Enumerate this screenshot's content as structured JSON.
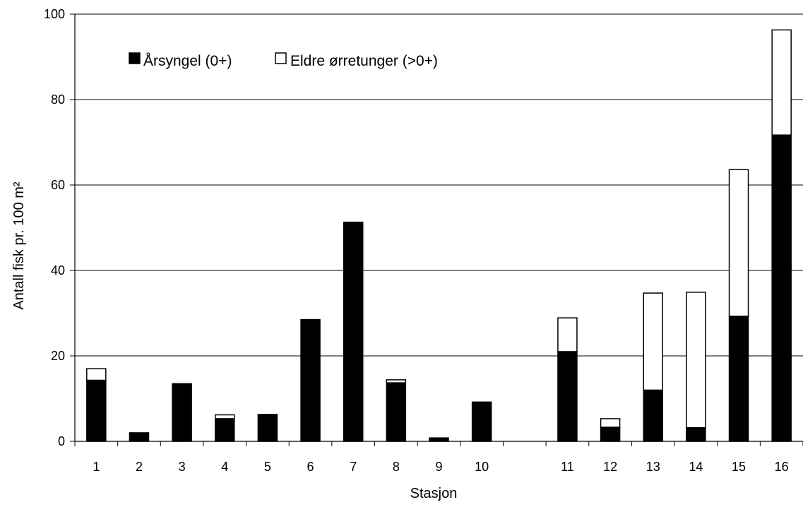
{
  "chart_data": {
    "type": "bar",
    "stacked": true,
    "xlabel": "Stasjon",
    "ylabel": "Antall fisk pr. 100 m²",
    "ylim": [
      0,
      100
    ],
    "yticks": [
      0,
      20,
      40,
      60,
      80,
      100
    ],
    "grid": true,
    "legend_position": "top-left",
    "categories": [
      "1",
      "2",
      "3",
      "4",
      "5",
      "6",
      "7",
      "8",
      "9",
      "10",
      "",
      "11",
      "12",
      "13",
      "14",
      "15",
      "16"
    ],
    "series": [
      {
        "name": "Årsyngel (0+)",
        "color": "#000000",
        "values": [
          14.3,
          2.0,
          13.5,
          5.3,
          6.3,
          28.5,
          51.3,
          13.7,
          0.8,
          9.2,
          0,
          21.0,
          3.3,
          12.0,
          3.2,
          29.3,
          71.7
        ]
      },
      {
        "name": "Eldre ørretunger (>0+)",
        "color": "#ffffff",
        "values": [
          2.7,
          0,
          0,
          0.9,
          0,
          0,
          0,
          0.7,
          0,
          0,
          0,
          7.9,
          2.0,
          22.7,
          31.7,
          34.3,
          24.6
        ]
      }
    ]
  }
}
